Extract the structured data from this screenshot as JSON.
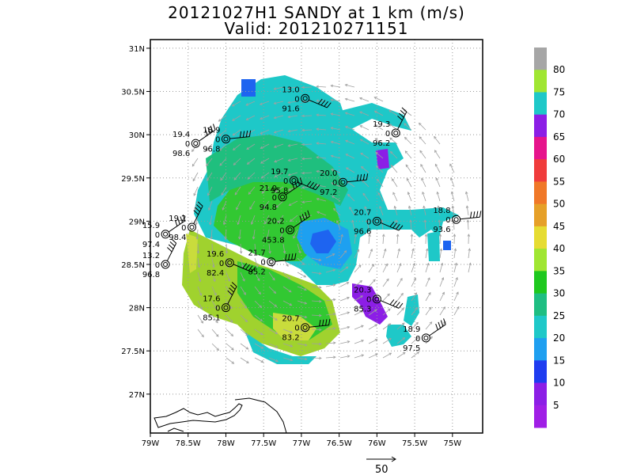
{
  "title": {
    "line1": "20121027H1 SANDY at 1 km (m/s)",
    "line2": "Valid: 201210271151"
  },
  "map": {
    "lat_range": [
      26.55,
      31.1
    ],
    "lon_range": [
      -79.0,
      -74.6
    ],
    "lat_ticks": [
      "31N",
      "30.5N",
      "30N",
      "29.5N",
      "29N",
      "28.5N",
      "28N",
      "27.5N",
      "27N"
    ],
    "lat_tick_values": [
      31,
      30.5,
      30,
      29.5,
      29,
      28.5,
      28,
      27.5,
      27
    ],
    "lon_ticks": [
      "79W",
      "78.5W",
      "78W",
      "77.5W",
      "77W",
      "76.5W",
      "76W",
      "75.5W",
      "75W"
    ],
    "lon_tick_values": [
      -79,
      -78.5,
      -78,
      -77.5,
      -77,
      -76.5,
      -76,
      -75.5,
      -75
    ],
    "grid": "dotted",
    "colors": {
      "light_green": "#a0d22e",
      "yellow_green": "#c9dc3c",
      "green": "#32c832",
      "teal_green": "#1fbf7e",
      "cyan": "#1ec8c8",
      "light_blue": "#1ea0f0",
      "blue": "#1e64f0",
      "purple": "#8c1ee6",
      "magenta": "#e6148c",
      "vector_color": "#a0a0a0"
    }
  },
  "colorbar": {
    "labels": [
      "80",
      "75",
      "70",
      "65",
      "60",
      "55",
      "50",
      "45",
      "40",
      "35",
      "30",
      "25",
      "20",
      "15",
      "10",
      "5"
    ],
    "colors": [
      "#a6a6a6",
      "#a0e632",
      "#1ec8c8",
      "#8c1ee6",
      "#e6148c",
      "#f03c3c",
      "#f07828",
      "#e6a028",
      "#e6dc32",
      "#a0e632",
      "#1ec81e",
      "#1ebe82",
      "#1ec8c8",
      "#1e9ff0",
      "#1e3cf0",
      "#8c1ee6",
      "#a01ee6"
    ]
  },
  "stations": [
    {
      "speed": "13.0",
      "dir": "0",
      "pres": "91.6",
      "lon": -76.95,
      "lat": 30.42
    },
    {
      "speed": "18.9",
      "dir": "0",
      "pres": "96.8",
      "lon": -78.0,
      "lat": 29.95
    },
    {
      "speed": "19.4",
      "dir": "0",
      "pres": "98.6",
      "lon": -78.4,
      "lat": 29.9
    },
    {
      "speed": "19.3",
      "dir": "0",
      "pres": "96.2",
      "lon": -75.75,
      "lat": 30.02
    },
    {
      "speed": "19.7",
      "dir": "0",
      "pres": "95.8",
      "lon": -77.1,
      "lat": 29.47
    },
    {
      "speed": "20.0",
      "dir": "0",
      "pres": "97.2",
      "lon": -76.45,
      "lat": 29.45
    },
    {
      "speed": "21.0",
      "dir": "0",
      "pres": "94.8",
      "lon": -77.25,
      "lat": 29.28
    },
    {
      "speed": "19.2",
      "dir": "0",
      "pres": "98.4",
      "lon": -78.45,
      "lat": 28.93
    },
    {
      "speed": "20.7",
      "dir": "0",
      "pres": "96.6",
      "lon": -76.0,
      "lat": 29.0
    },
    {
      "speed": "18.8",
      "dir": "0",
      "pres": "93.6",
      "lon": -74.95,
      "lat": 29.02
    },
    {
      "speed": "15.9",
      "dir": "0",
      "pres": "97.4",
      "lon": -78.8,
      "lat": 28.85
    },
    {
      "speed": "13.2",
      "dir": "0",
      "pres": "96.8",
      "lon": -78.8,
      "lat": 28.5
    },
    {
      "speed": "19.6",
      "dir": "0",
      "pres": "82.4",
      "lon": -77.95,
      "lat": 28.52
    },
    {
      "speed": "21.7",
      "dir": "0",
      "pres": "85.2",
      "lon": -77.4,
      "lat": 28.53
    },
    {
      "speed": "20.2",
      "dir": "0",
      "pres": "453.8",
      "lon": -77.15,
      "lat": 28.9
    },
    {
      "speed": "17.6",
      "dir": "0",
      "pres": "85.1",
      "lon": -78.0,
      "lat": 28.0
    },
    {
      "speed": "20.3",
      "dir": "0",
      "pres": "85.3",
      "lon": -76.0,
      "lat": 28.1
    },
    {
      "speed": "20.7",
      "dir": "0",
      "pres": "83.2",
      "lon": -76.95,
      "lat": 27.77
    },
    {
      "speed": "18.9",
      "dir": "0",
      "pres": "97.5",
      "lon": -75.35,
      "lat": 27.65
    }
  ],
  "scale_vector": {
    "label": "50"
  }
}
